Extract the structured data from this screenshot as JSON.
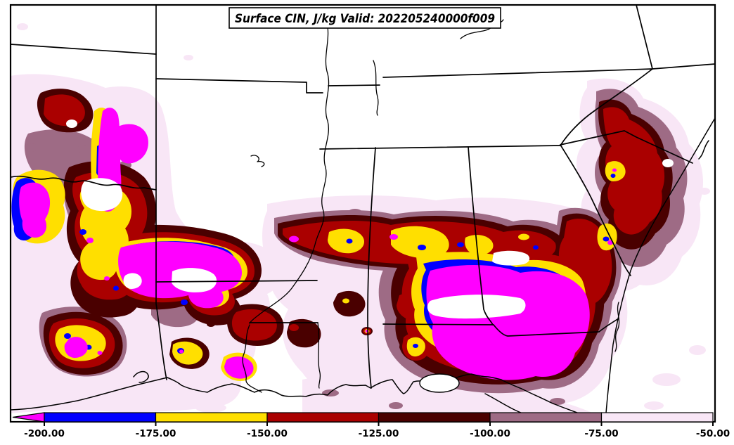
{
  "chart_data": {
    "type": "heatmap",
    "title": "Surface CIN, J/kg Valid: 202205240000f009",
    "variable": "Surface CIN",
    "units": "J/kg",
    "valid_label": "202205240000f009",
    "region_shown": "South-central / southeastern United States with Gulf and Atlantic coasts",
    "colorbar": {
      "orientation": "horizontal",
      "position": "bottom",
      "min": -200,
      "max": -50,
      "ticks": [
        -200,
        -175,
        -150,
        -125,
        -100,
        -75,
        -50
      ],
      "tick_labels": [
        "-200.00",
        "-175.00",
        "-150.00",
        "-125.00",
        "-100.00",
        "-75.00",
        "-50.00"
      ],
      "below_min_arrow": true,
      "segments": [
        {
          "range": "< -200",
          "name": "magenta",
          "color": "#FF00FF"
        },
        {
          "range": "-200 to -175",
          "name": "blue",
          "color": "#0000FF"
        },
        {
          "range": "-175 to -150",
          "name": "yellow",
          "color": "#FFDF00"
        },
        {
          "range": "-150 to -125",
          "name": "red",
          "color": "#AA0000"
        },
        {
          "range": "-125 to -100",
          "name": "maroon",
          "color": "#4A0000"
        },
        {
          "range": "-100 to -75",
          "name": "mauve",
          "color": "#9E6B85"
        },
        {
          "range": "-75 to -50",
          "name": "pink",
          "color": "#F8E6F6"
        }
      ]
    },
    "palette": {
      "magenta": "#FF00FF",
      "blue": "#0000FF",
      "yellow": "#FFDF00",
      "red": "#AA0000",
      "maroon": "#4A0000",
      "mauve": "#9E6B85",
      "pink": "#F8E6F6",
      "background": "#FFFFFF",
      "line": "#000000"
    }
  }
}
